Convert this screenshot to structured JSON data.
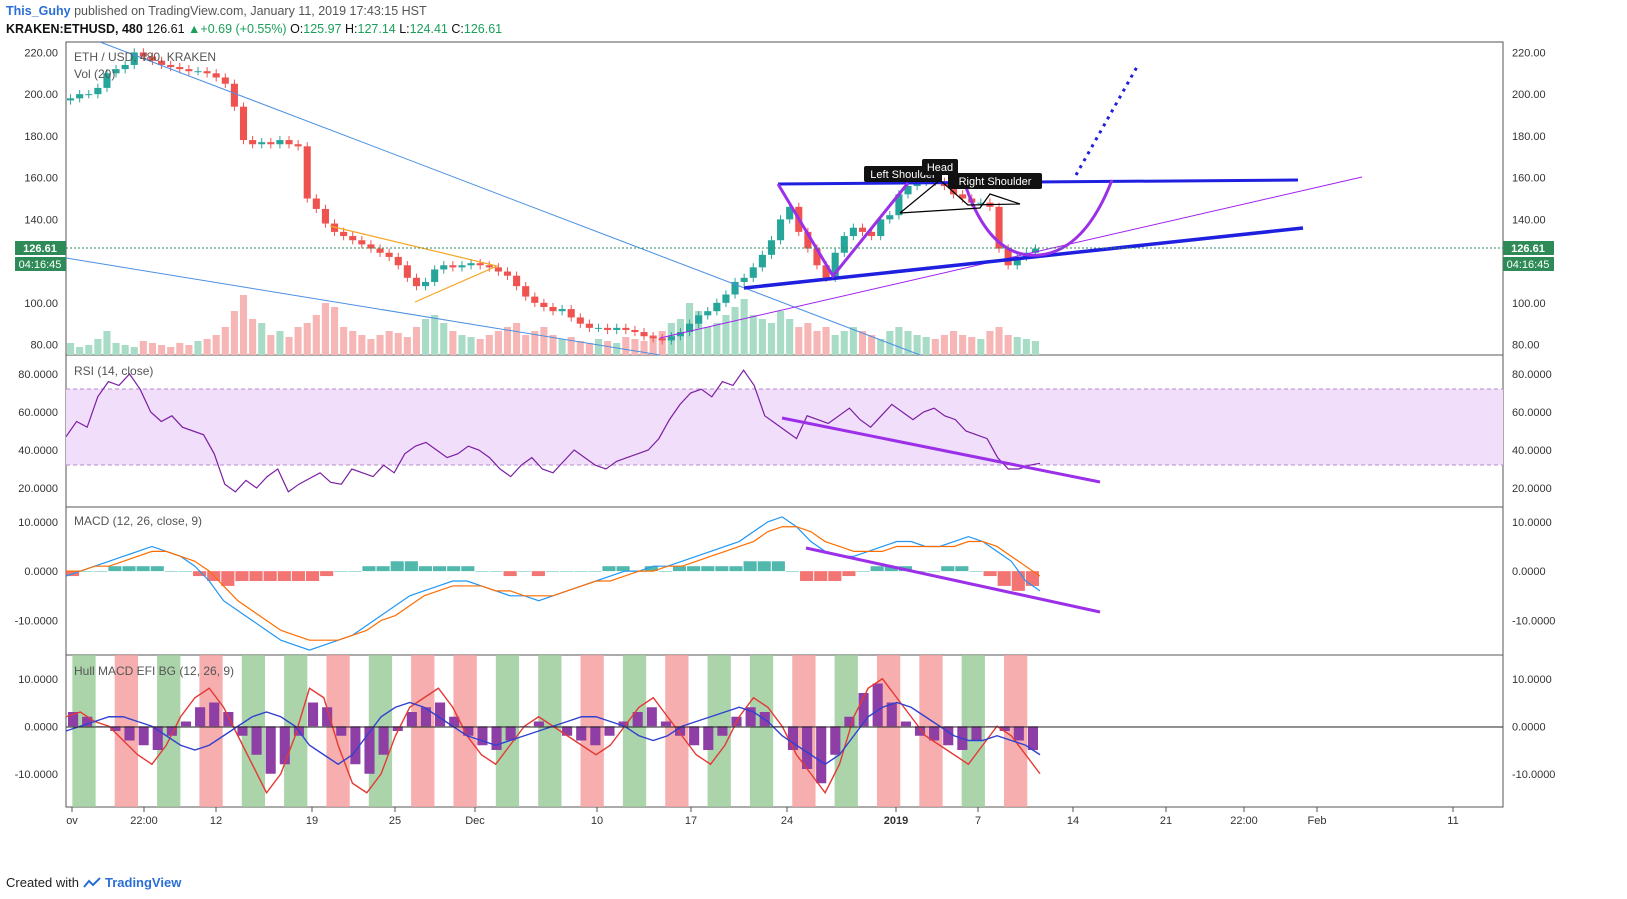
{
  "header": {
    "author": "This_Guhy",
    "published_text": "published on TradingView.com, January 11, 2019 17:43:15 HST",
    "symbol": "KRAKEN:ETHUSD, 480",
    "last": "126.61",
    "change": "+0.69 (+0.55%)",
    "open": "125.97",
    "high": "127.14",
    "low": "124.41",
    "close": "126.61"
  },
  "footer": {
    "created_with": "Created with",
    "brand": "TradingView"
  },
  "chart_data": [
    {
      "type": "candlestick",
      "title": "ETH / USD, 480, KRAKEN",
      "subtitle": "Vol (20)",
      "y_ticks": [
        "220.00",
        "200.00",
        "180.00",
        "160.00",
        "140.00",
        "120.00",
        "100.00",
        "80.00"
      ],
      "ylim": [
        75,
        225
      ],
      "current_price_label": "126.61",
      "countdown_label": "04:16:45",
      "annotations": [
        "Left Shoulder",
        "Head",
        "Right Shoulder"
      ],
      "close_series": [
        198,
        200,
        200,
        203,
        210,
        212,
        214,
        220,
        218,
        216,
        214,
        213,
        212,
        211,
        211,
        210,
        208,
        205,
        194,
        178,
        176,
        177,
        176,
        178,
        176,
        175,
        150,
        145,
        138,
        134,
        132,
        130,
        128,
        126,
        124,
        122,
        118,
        112,
        108,
        110,
        116,
        118,
        117,
        118,
        119,
        118,
        117,
        115,
        113,
        108,
        103,
        100,
        98,
        96,
        97,
        93,
        90,
        88,
        88,
        87,
        88,
        87,
        86,
        84,
        83,
        82,
        84,
        86,
        90,
        94,
        96,
        100,
        104,
        110,
        112,
        117,
        123,
        130,
        140,
        146,
        134,
        126,
        118,
        112,
        124,
        132,
        136,
        134,
        132,
        140,
        142,
        152,
        156,
        158,
        160,
        158,
        156,
        152,
        150,
        148,
        148,
        146,
        126,
        118,
        122,
        124,
        126
      ],
      "volume_series": [
        6,
        4,
        5,
        8,
        12,
        6,
        5,
        4,
        7,
        6,
        5,
        4,
        6,
        5,
        7,
        8,
        10,
        14,
        22,
        30,
        18,
        16,
        10,
        12,
        9,
        14,
        16,
        20,
        26,
        24,
        14,
        12,
        10,
        8,
        10,
        12,
        11,
        9,
        14,
        18,
        20,
        16,
        12,
        10,
        9,
        8,
        10,
        12,
        14,
        16,
        10,
        12,
        14,
        10,
        8,
        9,
        7,
        6,
        8,
        7,
        6,
        9,
        8,
        7,
        10,
        12,
        16,
        18,
        26,
        22,
        14,
        16,
        20,
        24,
        28,
        20,
        18,
        16,
        22,
        18,
        14,
        16,
        12,
        14,
        10,
        12,
        14,
        12,
        10,
        8,
        12,
        14,
        12,
        10,
        9,
        8,
        10,
        12,
        10,
        9,
        8,
        12,
        14,
        10,
        9,
        8,
        7
      ]
    },
    {
      "type": "line",
      "title": "RSI (14, close)",
      "y_ticks": [
        "80.0000",
        "60.0000",
        "40.0000",
        "20.0000"
      ],
      "ylim": [
        10,
        90
      ],
      "band": [
        30,
        70
      ],
      "values": [
        47,
        55,
        52,
        68,
        76,
        74,
        80,
        72,
        60,
        55,
        58,
        52,
        50,
        48,
        38,
        22,
        18,
        24,
        20,
        26,
        30,
        18,
        22,
        25,
        28,
        23,
        22,
        30,
        28,
        26,
        32,
        28,
        38,
        42,
        44,
        40,
        36,
        38,
        42,
        40,
        36,
        30,
        26,
        32,
        36,
        30,
        28,
        34,
        40,
        36,
        32,
        30,
        34,
        36,
        38,
        40,
        46,
        56,
        64,
        70,
        72,
        68,
        76,
        74,
        82,
        74,
        58,
        54,
        50,
        46,
        58,
        56,
        54,
        58,
        62,
        56,
        52,
        58,
        64,
        60,
        56,
        60,
        62,
        58,
        56,
        50,
        48,
        46,
        36,
        30,
        30,
        32,
        33
      ]
    },
    {
      "type": "line",
      "title": "MACD (12, 26, close, 9)",
      "y_ticks": [
        "10.0000",
        "0.0000",
        "-10.0000"
      ],
      "ylim": [
        -17,
        13
      ],
      "macd": [
        -1,
        0,
        1,
        2,
        3,
        4,
        5,
        4,
        3,
        1,
        -2,
        -6,
        -8,
        -10,
        -12,
        -14,
        -15,
        -16,
        -15,
        -14,
        -13,
        -11,
        -9,
        -7,
        -5,
        -4,
        -3,
        -2,
        -2,
        -3,
        -4,
        -5,
        -5,
        -6,
        -5,
        -4,
        -3,
        -2,
        -1,
        0,
        0,
        1,
        1,
        2,
        3,
        4,
        5,
        6,
        8,
        10,
        11,
        9,
        6,
        4,
        3,
        3,
        4,
        5,
        6,
        6,
        5,
        5,
        6,
        7,
        6,
        4,
        2,
        -2,
        -4
      ],
      "signal": [
        0,
        0,
        1,
        1,
        2,
        3,
        4,
        4,
        3,
        2,
        0,
        -3,
        -6,
        -8,
        -10,
        -12,
        -13,
        -14,
        -14,
        -14,
        -13,
        -12,
        -10,
        -9,
        -7,
        -5,
        -4,
        -3,
        -3,
        -3,
        -4,
        -4,
        -5,
        -5,
        -5,
        -4,
        -3,
        -2,
        -2,
        -1,
        0,
        0,
        1,
        1,
        2,
        3,
        4,
        5,
        6,
        8,
        9,
        9,
        8,
        6,
        5,
        4,
        4,
        4,
        5,
        5,
        5,
        5,
        5,
        6,
        6,
        5,
        3,
        1,
        -1
      ],
      "histogram": [
        -1,
        0,
        0,
        1,
        1,
        1,
        1,
        0,
        0,
        -1,
        -2,
        -3,
        -2,
        -2,
        -2,
        -2,
        -2,
        -2,
        -1,
        0,
        0,
        1,
        1,
        2,
        2,
        1,
        1,
        1,
        1,
        0,
        0,
        -1,
        0,
        -1,
        0,
        0,
        0,
        0,
        1,
        1,
        0,
        1,
        0,
        1,
        1,
        1,
        1,
        1,
        2,
        2,
        2,
        0,
        -2,
        -2,
        -2,
        -1,
        0,
        1,
        1,
        1,
        0,
        0,
        1,
        1,
        0,
        -1,
        -3,
        -4,
        -3
      ]
    },
    {
      "type": "line",
      "title": "Hull MACD EFI BG (12, 26, 9)",
      "y_ticks": [
        "10.0000",
        "0.0000",
        "-10.0000"
      ],
      "ylim": [
        -17,
        15
      ],
      "hull_red": [
        2,
        3,
        1,
        0,
        -3,
        -6,
        -8,
        -4,
        2,
        6,
        8,
        4,
        -2,
        -8,
        -14,
        -10,
        -2,
        8,
        6,
        -4,
        -12,
        -14,
        -10,
        -2,
        4,
        6,
        8,
        4,
        -2,
        -6,
        -8,
        -4,
        0,
        2,
        0,
        -2,
        -4,
        -6,
        -4,
        0,
        4,
        6,
        2,
        -2,
        -6,
        -8,
        -4,
        2,
        6,
        4,
        0,
        -6,
        -10,
        -14,
        -8,
        2,
        8,
        10,
        6,
        2,
        -2,
        -4,
        -6,
        -8,
        -4,
        0,
        -2,
        -6,
        -10
      ],
      "hull_blue": [
        -1,
        0,
        1,
        2,
        2,
        1,
        0,
        -2,
        -4,
        -5,
        -4,
        -2,
        0,
        2,
        3,
        2,
        0,
        -4,
        -6,
        -8,
        -6,
        -2,
        2,
        4,
        5,
        4,
        2,
        0,
        -2,
        -3,
        -4,
        -3,
        -2,
        -1,
        0,
        1,
        2,
        2,
        1,
        0,
        -2,
        -3,
        -2,
        0,
        1,
        2,
        3,
        4,
        3,
        1,
        -2,
        -4,
        -6,
        -8,
        -6,
        -2,
        2,
        4,
        5,
        4,
        2,
        0,
        -2,
        -3,
        -3,
        -2,
        -3,
        -4,
        -6
      ],
      "bars": [
        3,
        2,
        0,
        -1,
        -3,
        -4,
        -5,
        -2,
        1,
        4,
        5,
        3,
        -2,
        -6,
        -10,
        -8,
        -2,
        5,
        4,
        -2,
        -8,
        -10,
        -6,
        -1,
        3,
        4,
        5,
        2,
        -2,
        -4,
        -5,
        -3,
        0,
        1,
        0,
        -2,
        -3,
        -4,
        -2,
        1,
        3,
        4,
        1,
        -2,
        -4,
        -5,
        -2,
        2,
        4,
        3,
        0,
        -5,
        -9,
        -12,
        -6,
        2,
        7,
        9,
        5,
        1,
        -2,
        -3,
        -4,
        -5,
        -3,
        0,
        -1,
        -3,
        -5
      ],
      "bg_bands": [
        "green",
        "red",
        "green",
        "red",
        "green",
        "green",
        "red",
        "green",
        "red",
        "red",
        "green",
        "green",
        "red",
        "green",
        "red",
        "green",
        "green",
        "red",
        "green",
        "red",
        "red",
        "green",
        "red"
      ]
    }
  ],
  "x_ticks": [
    "ov",
    "22:00",
    "12",
    "19",
    "25",
    "Dec",
    "10",
    "17",
    "24",
    "2019",
    "7",
    "14",
    "21",
    "22:00",
    "Feb",
    "11"
  ]
}
